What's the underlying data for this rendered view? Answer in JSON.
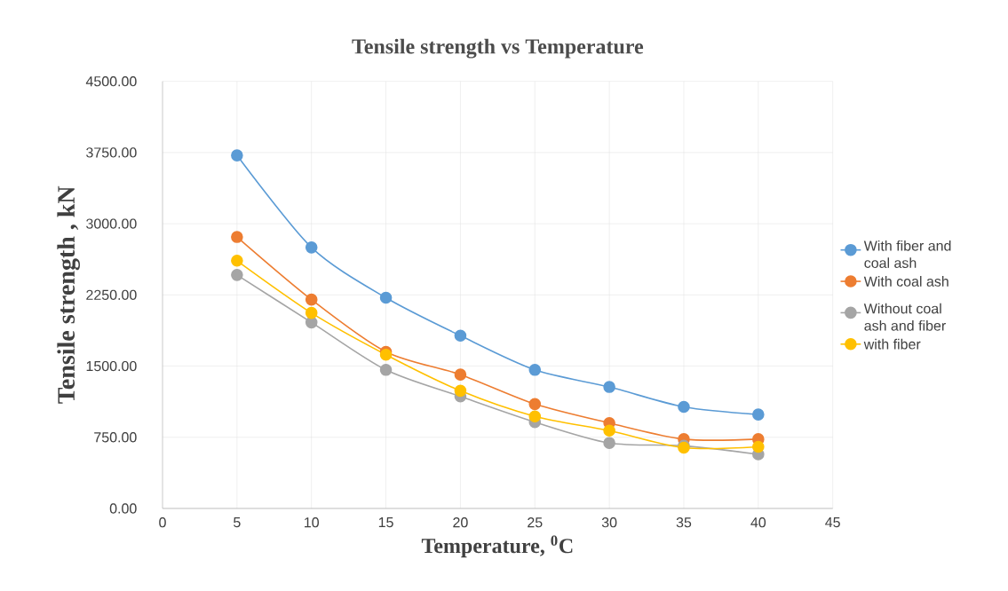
{
  "chart_data": {
    "type": "line",
    "title": "Tensile strength vs Temperature",
    "xlabel": "Temperature, $^{0}$C",
    "ylabel": "Tensile strength , kN",
    "x": [
      5,
      10,
      15,
      20,
      25,
      30,
      35,
      40
    ],
    "series": [
      {
        "name": "With fiber and coal ash",
        "color": "#5b9bd5",
        "values": [
          3720,
          2750,
          2220,
          1820,
          1460,
          1280,
          1070,
          990
        ]
      },
      {
        "name": "With coal ash",
        "color": "#ed7d31",
        "values": [
          2860,
          2200,
          1650,
          1410,
          1100,
          900,
          730,
          730
        ]
      },
      {
        "name": "Without coal ash and fiber",
        "color": "#a5a5a5",
        "values": [
          2460,
          1960,
          1460,
          1180,
          910,
          690,
          660,
          570
        ]
      },
      {
        "name": "with fiber",
        "color": "#ffc000",
        "values": [
          2610,
          2060,
          1620,
          1240,
          970,
          820,
          640,
          650
        ]
      }
    ],
    "xlim": [
      0,
      45
    ],
    "xticks": [
      0,
      5,
      10,
      15,
      20,
      25,
      30,
      35,
      40,
      45
    ],
    "ylim": [
      0,
      4500
    ],
    "yticks": [
      {
        "value": 0,
        "label": "0.00"
      },
      {
        "value": 750,
        "label": "750.00"
      },
      {
        "value": 1500,
        "label": "1500.00"
      },
      {
        "value": 2250,
        "label": "2250.00"
      },
      {
        "value": 3000,
        "label": "3000.00"
      },
      {
        "value": 3750,
        "label": "3750.00"
      },
      {
        "value": 4500,
        "label": "4500.00"
      }
    ],
    "grid": true,
    "legend": "right",
    "marker": "circle"
  }
}
